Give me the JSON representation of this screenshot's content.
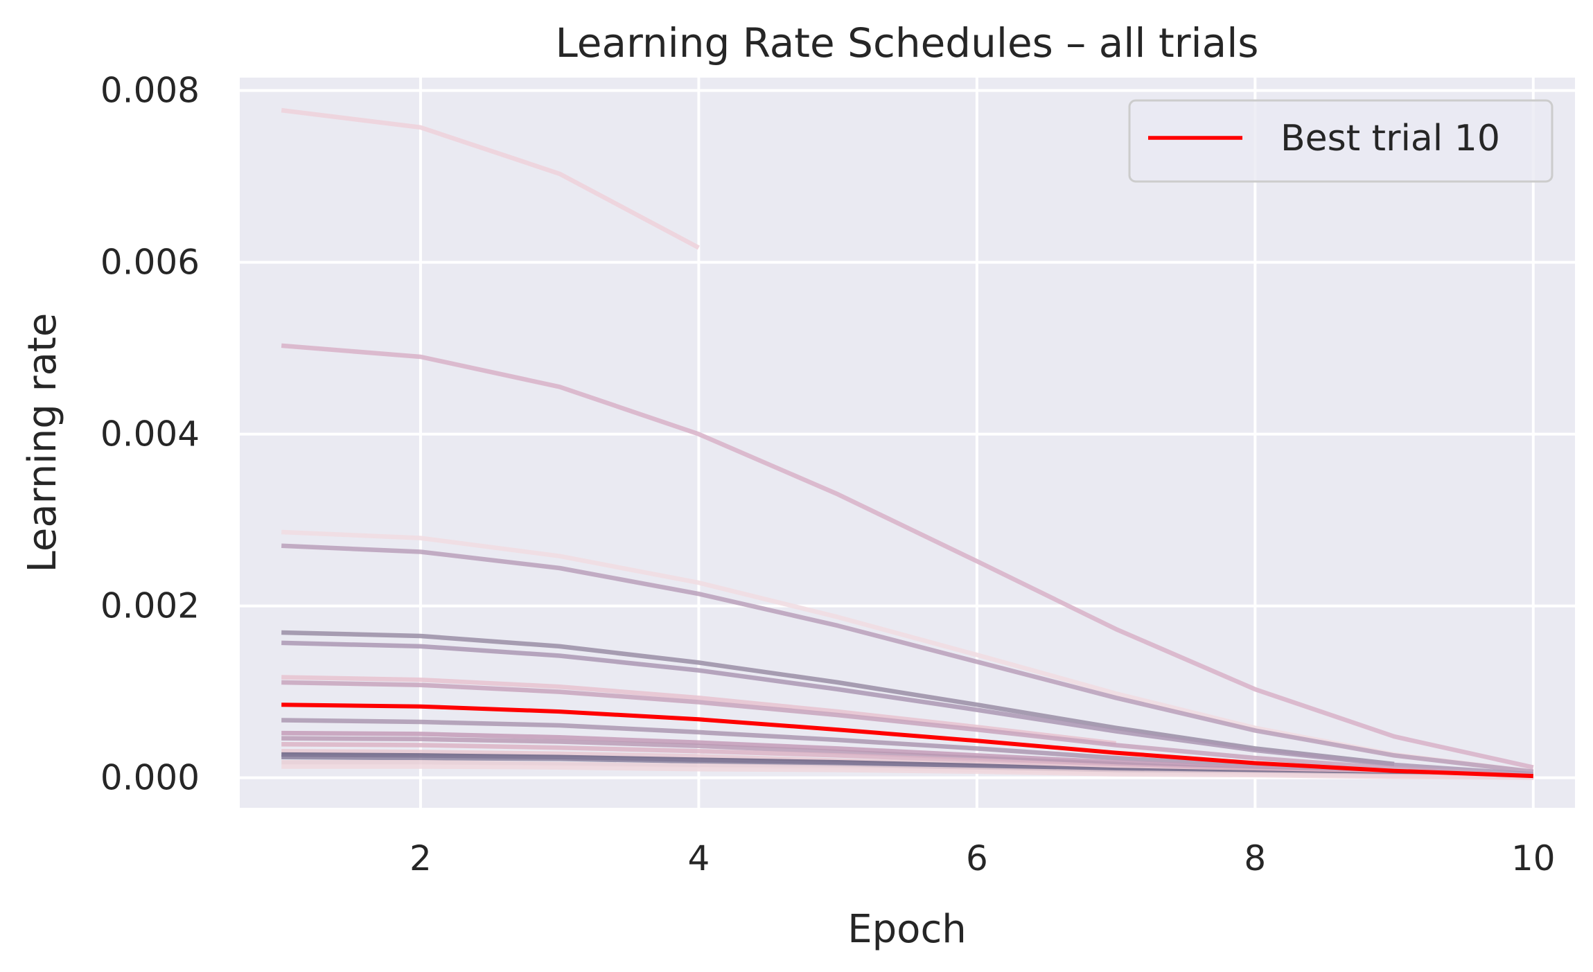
{
  "chart_data": {
    "type": "line",
    "title": "Learning Rate Schedules – all trials",
    "xlabel": "Epoch",
    "ylabel": "Learning rate",
    "xlim": [
      0.7,
      10.3
    ],
    "ylim": [
      -0.00035,
      0.00815
    ],
    "xticks": [
      2,
      4,
      6,
      8,
      10
    ],
    "xtick_labels": [
      "2",
      "4",
      "6",
      "8",
      "10"
    ],
    "yticks": [
      0,
      0.002,
      0.004,
      0.006,
      0.008
    ],
    "ytick_labels": [
      "0.000",
      "0.002",
      "0.004",
      "0.006",
      "0.008"
    ],
    "grid": true,
    "legend": {
      "position": "top-right",
      "entries": [
        {
          "label": "Best trial 10",
          "color": "#ff0000"
        }
      ]
    },
    "colors": {
      "background": "#eaeaf2",
      "grid": "#ffffff",
      "best": "#ff0000"
    },
    "series": [
      {
        "x": [
          1,
          2,
          3,
          4
        ],
        "values": [
          0.00777,
          0.00757,
          0.00703,
          0.00617
        ],
        "color": "#eed3db",
        "alpha": 0.9,
        "best": false
      },
      {
        "x": [
          1,
          2,
          3,
          4,
          5,
          6,
          7,
          8,
          9,
          10
        ],
        "values": [
          0.00503,
          0.0049,
          0.00455,
          0.004,
          0.0033,
          0.00252,
          0.00173,
          0.00103,
          0.00048,
          0.00012
        ],
        "color": "#d8b2c8",
        "alpha": 0.85,
        "best": false
      },
      {
        "x": [
          1,
          2,
          3,
          4,
          5,
          6,
          7,
          8,
          9,
          10
        ],
        "values": [
          0.00286,
          0.00279,
          0.00258,
          0.00227,
          0.00187,
          0.00143,
          0.00098,
          0.00058,
          0.00027,
          7e-05
        ],
        "color": "#f1dde2",
        "alpha": 0.9,
        "best": false
      },
      {
        "x": [
          1,
          2,
          3,
          4,
          5,
          6,
          7,
          8,
          9,
          10
        ],
        "values": [
          0.0027,
          0.00263,
          0.00244,
          0.00214,
          0.00177,
          0.00135,
          0.00093,
          0.00055,
          0.00026,
          7e-05
        ],
        "color": "#b79bb7",
        "alpha": 0.8,
        "best": false
      },
      {
        "x": [
          1,
          2,
          3,
          4,
          5,
          6,
          7,
          8,
          9
        ],
        "values": [
          0.00169,
          0.00165,
          0.00153,
          0.00134,
          0.00111,
          0.00085,
          0.00058,
          0.00034,
          0.00016
        ],
        "color": "#9a8ea6",
        "alpha": 0.85,
        "best": false
      },
      {
        "x": [
          1,
          2,
          3,
          4,
          5,
          6,
          7,
          8,
          9,
          10
        ],
        "values": [
          0.00157,
          0.00153,
          0.00142,
          0.00125,
          0.00103,
          0.00079,
          0.00054,
          0.00032,
          0.00015,
          4e-05
        ],
        "color": "#ac98b4",
        "alpha": 0.85,
        "best": false
      },
      {
        "x": [
          1,
          2,
          3,
          4,
          5,
          6,
          7
        ],
        "values": [
          0.00117,
          0.00114,
          0.00106,
          0.00093,
          0.00077,
          0.00059,
          0.0004
        ],
        "color": "#e8c3d0",
        "alpha": 0.85,
        "best": false
      },
      {
        "x": [
          1,
          2,
          3,
          4,
          5,
          6,
          7,
          8,
          9,
          10
        ],
        "values": [
          0.00111,
          0.00108,
          0.001,
          0.00088,
          0.00073,
          0.00056,
          0.00038,
          0.00023,
          0.00011,
          3e-05
        ],
        "color": "#c8a5bd",
        "alpha": 0.85,
        "best": false
      },
      {
        "x": [
          1,
          2,
          3,
          4,
          5,
          6,
          7,
          8,
          9,
          10
        ],
        "values": [
          0.00067,
          0.00065,
          0.00061,
          0.00053,
          0.00044,
          0.00034,
          0.00023,
          0.00014,
          6e-05,
          2e-05
        ],
        "color": "#a892ad",
        "alpha": 0.8,
        "best": false
      },
      {
        "x": [
          1,
          2,
          3,
          4,
          5,
          6,
          7,
          8,
          9,
          10
        ],
        "values": [
          0.00052,
          0.00051,
          0.00047,
          0.00041,
          0.00034,
          0.00026,
          0.00018,
          0.00011,
          5e-05,
          1e-05
        ],
        "color": "#c49cb8",
        "alpha": 0.85,
        "best": false
      },
      {
        "x": [
          1,
          2,
          3,
          4,
          5,
          6,
          7,
          8,
          9,
          10
        ],
        "values": [
          0.00046,
          0.00045,
          0.00042,
          0.00037,
          0.0003,
          0.00023,
          0.00016,
          9e-05,
          4e-05,
          1e-05
        ],
        "color": "#b897b2",
        "alpha": 0.8,
        "best": false
      },
      {
        "x": [
          1,
          2,
          3,
          4,
          5,
          6,
          7,
          8,
          9,
          10
        ],
        "values": [
          0.00039,
          0.00038,
          0.00035,
          0.00031,
          0.00026,
          0.0002,
          0.00013,
          8e-05,
          4e-05,
          1e-05
        ],
        "color": "#dcb4c6",
        "alpha": 0.85,
        "best": false
      },
      {
        "x": [
          1,
          2,
          3,
          4,
          5,
          6,
          7,
          8,
          9,
          10
        ],
        "values": [
          0.00031,
          0.0003,
          0.00028,
          0.00025,
          0.0002,
          0.00016,
          0.00011,
          6e-05,
          3e-05,
          1e-05
        ],
        "color": "#e7c9d2",
        "alpha": 0.85,
        "best": false
      },
      {
        "x": [
          1,
          2,
          3,
          4,
          5,
          6,
          7,
          8,
          9,
          10
        ],
        "values": [
          0.00027,
          0.00026,
          0.00024,
          0.00021,
          0.00018,
          0.00014,
          9e-05,
          6e-05,
          3e-05,
          1e-05
        ],
        "color": "#6a6384",
        "alpha": 0.85,
        "best": false
      },
      {
        "x": [
          1,
          2,
          3,
          4,
          5,
          6,
          7,
          8,
          9,
          10
        ],
        "values": [
          0.00024,
          0.00023,
          0.00022,
          0.00019,
          0.00016,
          0.00012,
          8e-05,
          5e-05,
          2e-05,
          1e-05
        ],
        "color": "#857a99",
        "alpha": 0.8,
        "best": false
      },
      {
        "x": [
          1,
          2,
          3,
          4,
          5,
          6,
          7,
          8,
          9,
          10
        ],
        "values": [
          0.00018,
          0.00018,
          0.00016,
          0.00014,
          0.00012,
          9e-05,
          6e-05,
          4e-05,
          2e-05,
          0.0
        ],
        "color": "#e9cfd6",
        "alpha": 0.85,
        "best": false
      },
      {
        "x": [
          1,
          2,
          3,
          4,
          5,
          6,
          7,
          8,
          9,
          10
        ],
        "values": [
          0.00013,
          0.00013,
          0.00012,
          0.0001,
          9e-05,
          7e-05,
          4e-05,
          3e-05,
          1e-05,
          0.0
        ],
        "color": "#f0d8de",
        "alpha": 0.85,
        "best": false
      },
      {
        "x": [
          1,
          2,
          3,
          4,
          5,
          6,
          7,
          8,
          9,
          10
        ],
        "values": [
          0.00085,
          0.00083,
          0.00077,
          0.00068,
          0.00056,
          0.00043,
          0.00029,
          0.00017,
          8e-05,
          2e-05
        ],
        "color": "#ff0000",
        "alpha": 1,
        "best": true
      }
    ]
  }
}
